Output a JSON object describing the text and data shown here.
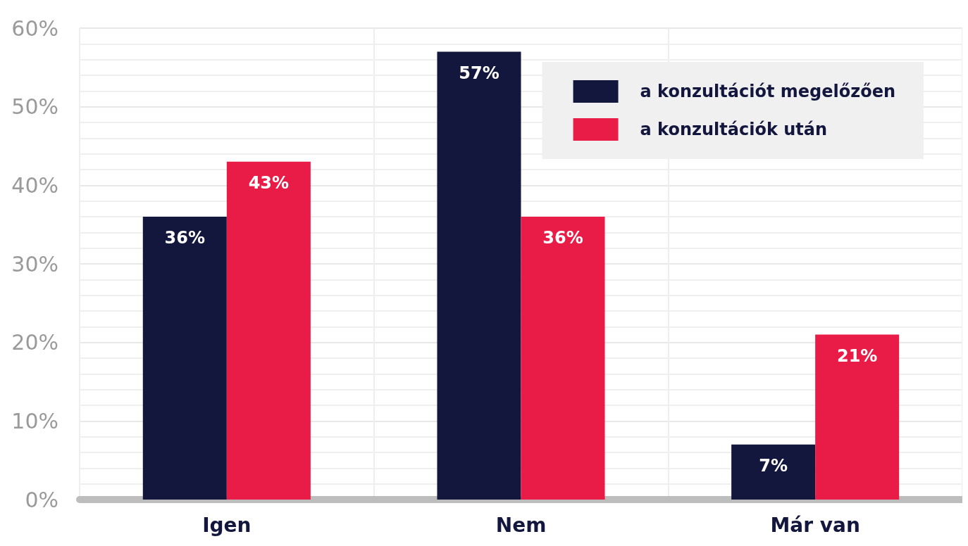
{
  "chart_data": {
    "type": "bar",
    "categories": [
      "Igen",
      "Nem",
      "Már van"
    ],
    "series": [
      {
        "name": "a konzultációt megelőzően",
        "color": "#14173d",
        "values": [
          36,
          57,
          7
        ],
        "value_labels": [
          "36%",
          "57%",
          "7%"
        ]
      },
      {
        "name": "a konzultációk után",
        "color": "#e91c47",
        "values": [
          43,
          36,
          21
        ],
        "value_labels": [
          "43%",
          "36%",
          "21%"
        ]
      }
    ],
    "ylim": [
      0,
      60
    ],
    "yticks": [
      {
        "value": 0,
        "label": "0%"
      },
      {
        "value": 10,
        "label": "10%"
      },
      {
        "value": 20,
        "label": "20%"
      },
      {
        "value": 30,
        "label": "30%"
      },
      {
        "value": 40,
        "label": "40%"
      },
      {
        "value": 50,
        "label": "50%"
      },
      {
        "value": 60,
        "label": "60%"
      }
    ],
    "grid": true,
    "legend": "top right"
  }
}
